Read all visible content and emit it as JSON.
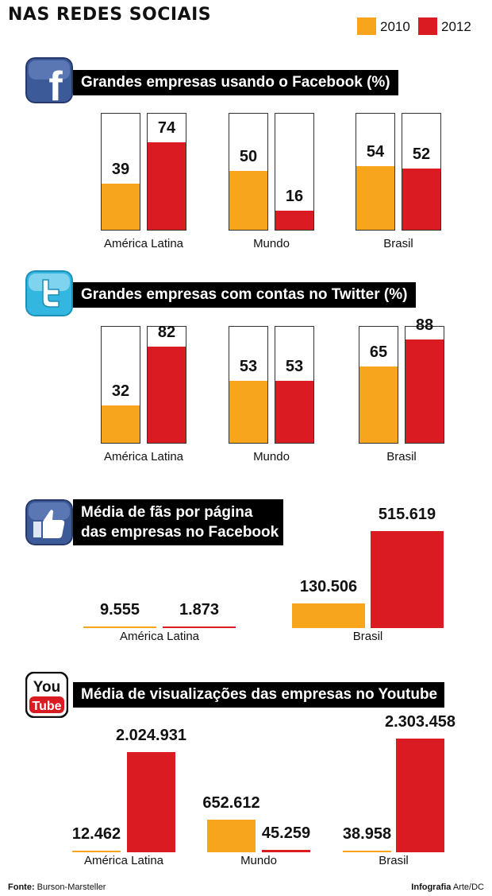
{
  "title": "NAS REDES SOCIAIS",
  "legend": [
    {
      "label": "2010",
      "color": "#f7a51c"
    },
    {
      "label": "2012",
      "color": "#da1b22"
    }
  ],
  "icons": {
    "facebook": "f",
    "youtube_top": "You",
    "youtube_bottom": "Tube"
  },
  "chart_data": [
    {
      "type": "bar",
      "title": "Grandes empresas usando o Facebook (%)",
      "icon": "facebook-icon",
      "categories": [
        "América Latina",
        "Mundo",
        "Brasil"
      ],
      "series": [
        {
          "name": "2010",
          "values": [
            39,
            50,
            54
          ]
        },
        {
          "name": "2012",
          "values": [
            74,
            16,
            52
          ]
        }
      ],
      "ylim": [
        0,
        100
      ]
    },
    {
      "type": "bar",
      "title": "Grandes empresas com contas no Twitter (%)",
      "icon": "twitter-icon",
      "categories": [
        "América Latina",
        "Mundo",
        "Brasil"
      ],
      "series": [
        {
          "name": "2010",
          "values": [
            32,
            53,
            65
          ]
        },
        {
          "name": "2012",
          "values": [
            82,
            53,
            88
          ]
        }
      ],
      "ylim": [
        0,
        100
      ]
    },
    {
      "type": "bar",
      "title_line1": "Média de fãs por página",
      "title_line2": "das empresas no Facebook",
      "icon": "thumbs-up-icon",
      "categories": [
        "América Latina",
        "Brasil"
      ],
      "series": [
        {
          "name": "2010",
          "values": [
            9555,
            130506
          ],
          "labels": [
            "9.555",
            "130.506"
          ]
        },
        {
          "name": "2012",
          "values": [
            1873,
            515619
          ],
          "labels": [
            "1.873",
            "515.619"
          ]
        }
      ]
    },
    {
      "type": "bar",
      "title": "Média de visualizações das empresas no Youtube",
      "icon": "youtube-icon",
      "categories": [
        "América Latina",
        "Mundo",
        "Brasil"
      ],
      "series": [
        {
          "name": "2010",
          "values": [
            12462,
            652612,
            38958
          ],
          "labels": [
            "12.462",
            "652.612",
            "38.958"
          ]
        },
        {
          "name": "2012",
          "values": [
            2024931,
            45259,
            2303458
          ],
          "labels": [
            "2.024.931",
            "45.259",
            "2.303.458"
          ]
        }
      ]
    }
  ],
  "footer": {
    "source_label": "Fonte:",
    "source_value": "Burson-Marsteller",
    "credit_label": "Infografia",
    "credit_value": "Arte/DC"
  }
}
